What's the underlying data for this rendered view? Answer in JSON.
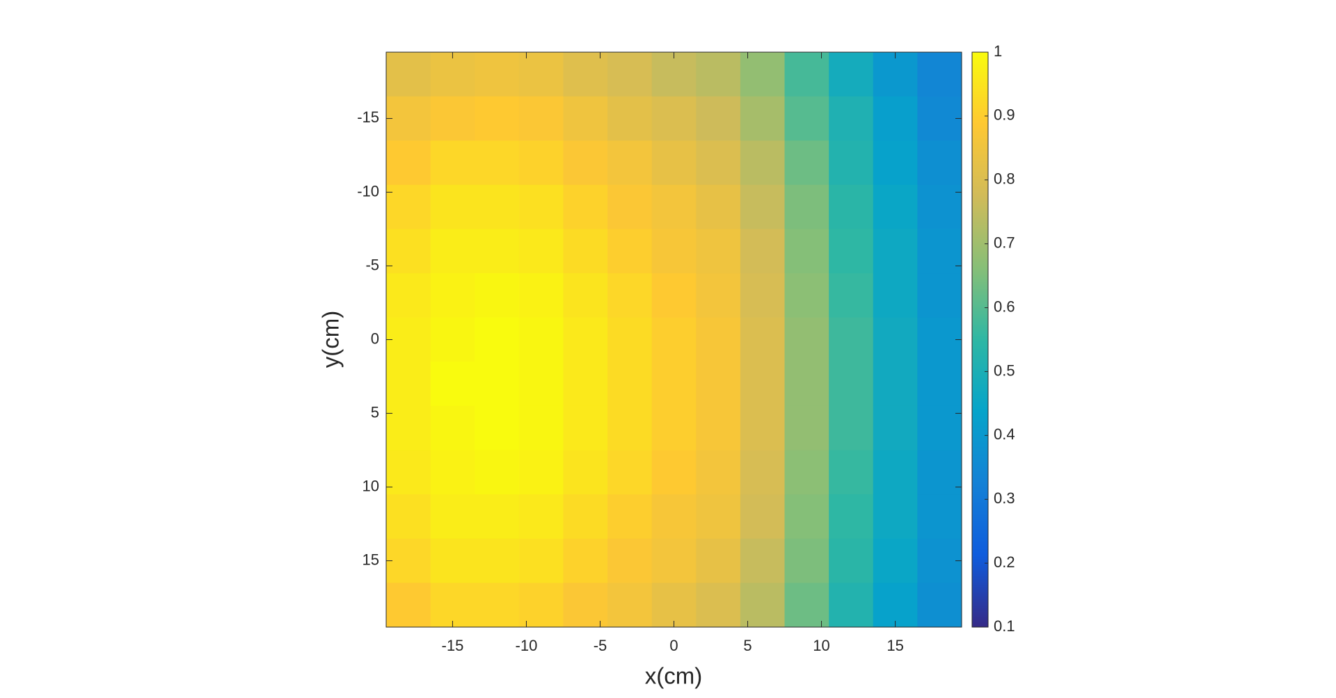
{
  "chart_data": {
    "type": "heatmap",
    "xlabel": "x(cm)",
    "ylabel": "y(cm)",
    "x": [
      -18,
      -15,
      -12,
      -9,
      -6,
      -3,
      0,
      3,
      6,
      9,
      12,
      15,
      18
    ],
    "y": [
      -18,
      -15,
      -12,
      -9,
      -6,
      -3,
      0,
      3,
      6,
      9,
      12,
      15,
      18
    ],
    "z": [
      [
        0.82,
        0.84,
        0.85,
        0.84,
        0.81,
        0.79,
        0.76,
        0.74,
        0.68,
        0.58,
        0.48,
        0.4,
        0.34
      ],
      [
        0.86,
        0.88,
        0.89,
        0.88,
        0.85,
        0.82,
        0.8,
        0.77,
        0.71,
        0.6,
        0.51,
        0.42,
        0.35
      ],
      [
        0.89,
        0.92,
        0.92,
        0.91,
        0.88,
        0.86,
        0.83,
        0.8,
        0.74,
        0.63,
        0.52,
        0.43,
        0.37
      ],
      [
        0.92,
        0.95,
        0.95,
        0.94,
        0.91,
        0.88,
        0.86,
        0.83,
        0.76,
        0.65,
        0.54,
        0.45,
        0.38
      ],
      [
        0.94,
        0.97,
        0.97,
        0.96,
        0.93,
        0.9,
        0.87,
        0.85,
        0.78,
        0.66,
        0.55,
        0.46,
        0.39
      ],
      [
        0.96,
        0.98,
        0.99,
        0.98,
        0.95,
        0.92,
        0.89,
        0.86,
        0.79,
        0.67,
        0.56,
        0.46,
        0.39
      ],
      [
        0.97,
        0.99,
        1.0,
        0.99,
        0.96,
        0.93,
        0.9,
        0.87,
        0.8,
        0.68,
        0.57,
        0.47,
        0.4
      ],
      [
        0.97,
        1.0,
        1.0,
        0.99,
        0.96,
        0.93,
        0.9,
        0.87,
        0.8,
        0.68,
        0.57,
        0.47,
        0.4
      ],
      [
        0.97,
        0.99,
        1.0,
        0.99,
        0.96,
        0.93,
        0.9,
        0.87,
        0.8,
        0.68,
        0.57,
        0.47,
        0.4
      ],
      [
        0.96,
        0.98,
        0.99,
        0.98,
        0.95,
        0.92,
        0.89,
        0.86,
        0.79,
        0.67,
        0.56,
        0.46,
        0.39
      ],
      [
        0.94,
        0.97,
        0.97,
        0.96,
        0.93,
        0.9,
        0.87,
        0.85,
        0.78,
        0.66,
        0.55,
        0.46,
        0.39
      ],
      [
        0.92,
        0.95,
        0.95,
        0.94,
        0.91,
        0.88,
        0.86,
        0.83,
        0.76,
        0.65,
        0.54,
        0.45,
        0.38
      ],
      [
        0.89,
        0.92,
        0.92,
        0.91,
        0.88,
        0.86,
        0.83,
        0.8,
        0.74,
        0.63,
        0.52,
        0.43,
        0.37
      ]
    ],
    "xlim": [
      -19.5,
      19.5
    ],
    "xticks": [
      -15,
      -10,
      -5,
      0,
      5,
      10,
      15
    ],
    "ylim": [
      19.5,
      -19.5
    ],
    "yticks": [
      -15,
      -10,
      -5,
      0,
      5,
      10,
      15
    ],
    "clim": [
      0.1,
      1
    ],
    "cticks": [
      0.1,
      0.2,
      0.3,
      0.4,
      0.5,
      0.6,
      0.7,
      0.8,
      0.9,
      1
    ],
    "colormap": [
      "#352a87",
      "#0f5cdd",
      "#1481d6",
      "#06a4ca",
      "#2eb7a4",
      "#87bf77",
      "#d1bb59",
      "#fec832",
      "#f9fb0e"
    ]
  }
}
